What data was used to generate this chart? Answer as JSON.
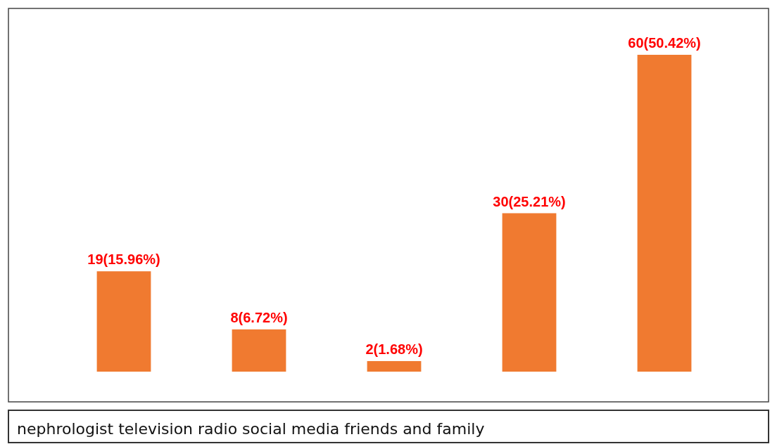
{
  "chart_data": {
    "type": "bar",
    "categories": [
      null,
      null,
      null,
      null,
      null
    ],
    "values": [
      19,
      8,
      2,
      30,
      60
    ],
    "value_labels": [
      "19(15.96%)",
      "8(6.72%)",
      "2(1.68%)",
      "30(25.21%)",
      "60(50.42%)"
    ],
    "color": "#f07a30",
    "annotations": [
      "nephrologist television radio social media friends and family"
    ]
  }
}
